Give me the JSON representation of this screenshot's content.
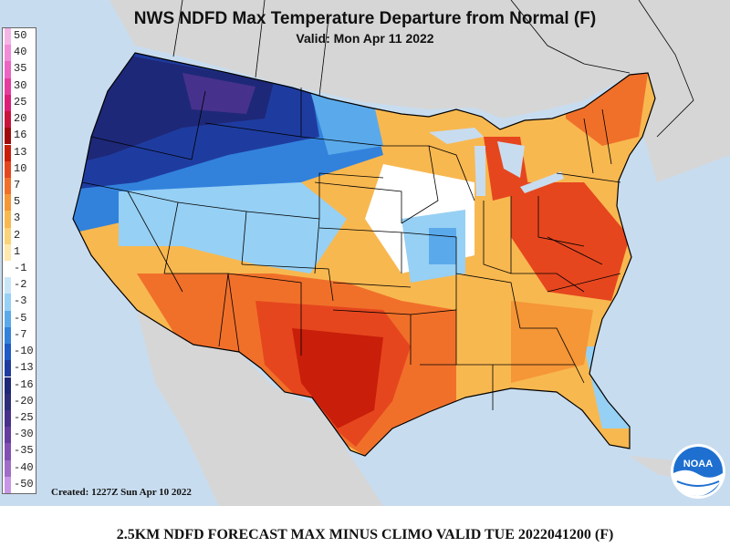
{
  "header": {
    "title": "NWS NDFD Max Temperature Departure from Normal (F)",
    "valid": "Valid: Mon Apr 11 2022"
  },
  "legend": {
    "items": [
      {
        "label": "50",
        "color": "#f5b4e6"
      },
      {
        "label": "40",
        "color": "#f08cd8"
      },
      {
        "label": "35",
        "color": "#ec64c4"
      },
      {
        "label": "30",
        "color": "#e63ca0"
      },
      {
        "label": "25",
        "color": "#dc1e78"
      },
      {
        "label": "20",
        "color": "#c8143c"
      },
      {
        "label": "16",
        "color": "#a00a0a"
      },
      {
        "label": "13",
        "color": "#c81e0a"
      },
      {
        "label": "10",
        "color": "#e6461e"
      },
      {
        "label": "7",
        "color": "#f0702a"
      },
      {
        "label": "5",
        "color": "#f59637"
      },
      {
        "label": "3",
        "color": "#f8b850"
      },
      {
        "label": "2",
        "color": "#fad278"
      },
      {
        "label": "1",
        "color": "#fde9ad"
      },
      {
        "label": "-1",
        "color": "#ffffff"
      },
      {
        "label": "-2",
        "color": "#c8e6f8"
      },
      {
        "label": "-3",
        "color": "#96d0f4"
      },
      {
        "label": "-5",
        "color": "#5aaaeb"
      },
      {
        "label": "-7",
        "color": "#3282dc"
      },
      {
        "label": "-10",
        "color": "#1e5ac8"
      },
      {
        "label": "-13",
        "color": "#1e3ca0"
      },
      {
        "label": "-16",
        "color": "#1e2878"
      },
      {
        "label": "-20",
        "color": "#2d2d78"
      },
      {
        "label": "-25",
        "color": "#46328c"
      },
      {
        "label": "-30",
        "color": "#643ca0"
      },
      {
        "label": "-35",
        "color": "#8250b4"
      },
      {
        "label": "-40",
        "color": "#a06ec8"
      },
      {
        "label": "-50",
        "color": "#c896e6"
      }
    ]
  },
  "created": "Created: 1227Z Sun Apr 10 2022",
  "footer": "2.5KM NDFD FORECAST MAX MINUS CLIMO VALID TUE 2022041200 (F)",
  "logo": {
    "text": "NOAA"
  }
}
